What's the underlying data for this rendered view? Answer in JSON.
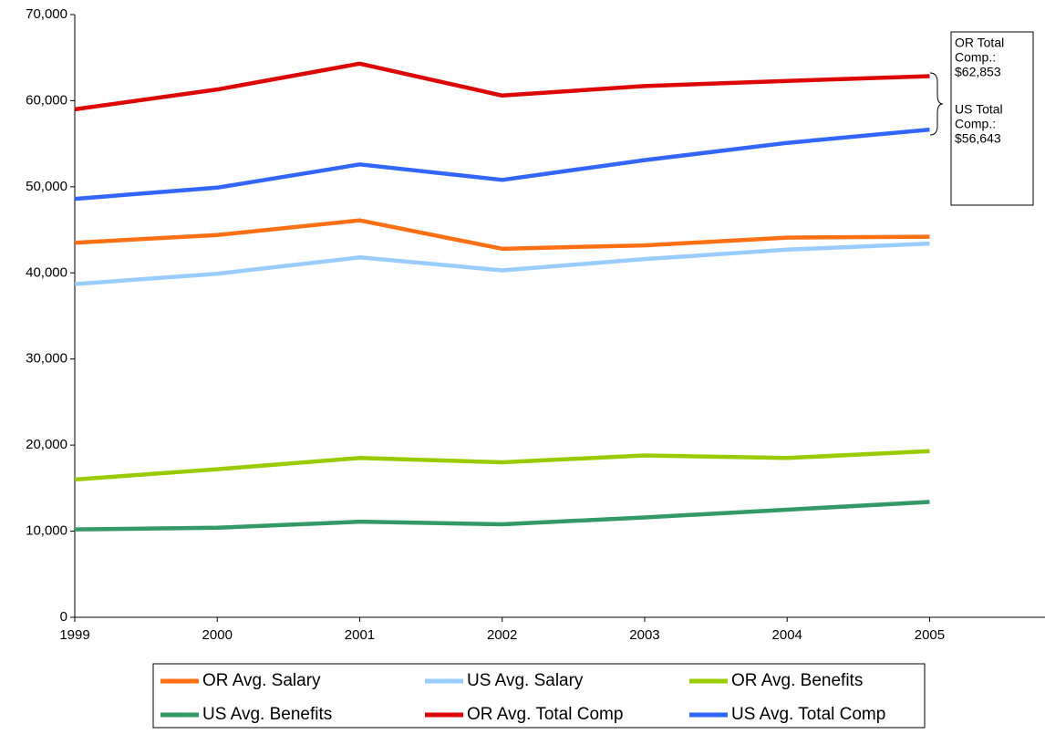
{
  "chart_data": {
    "type": "line",
    "x": [
      1999,
      2000,
      2001,
      2002,
      2003,
      2004,
      2005
    ],
    "xlim": [
      1999,
      2005.81
    ],
    "xticks": [
      1999,
      2000,
      2001,
      2002,
      2003,
      2004,
      2005
    ],
    "ylim": [
      0,
      70000
    ],
    "yticks": [
      0,
      {
        "value": 10000,
        "label": "10,000"
      },
      {
        "value": 20000,
        "label": "20,000"
      },
      {
        "value": 30000,
        "label": "30,000"
      },
      {
        "value": 40000,
        "label": "40,000"
      },
      {
        "value": 50000,
        "label": "50,000"
      },
      {
        "value": 60000,
        "label": "60,000"
      },
      {
        "value": 70000,
        "label": "70,000"
      }
    ],
    "grid": false,
    "series": [
      {
        "name": "OR Avg. Salary",
        "color": "#ff7014",
        "values": [
          43500,
          44400,
          46100,
          42800,
          43200,
          44100,
          44200
        ]
      },
      {
        "name": "US Avg. Salary",
        "color": "#99ccff",
        "values": [
          38700,
          39900,
          41800,
          40300,
          41600,
          42700,
          43400
        ]
      },
      {
        "name": "OR Avg. Benefits",
        "color": "#99cc00",
        "values": [
          16000,
          17200,
          18500,
          18000,
          18800,
          18500,
          19300
        ]
      },
      {
        "name": "US Avg. Benefits",
        "color": "#339966",
        "values": [
          10200,
          10400,
          11100,
          10800,
          11600,
          12500,
          13400
        ]
      },
      {
        "name": "OR Avg. Total Comp",
        "color": "#dd0806",
        "values": [
          59000,
          61300,
          64300,
          60600,
          61700,
          62300,
          62853
        ]
      },
      {
        "name": "US Avg. Total Comp",
        "color": "#3366ff",
        "values": [
          48600,
          49900,
          52600,
          50800,
          53100,
          55100,
          56643
        ]
      }
    ],
    "annotations": [
      {
        "lines": [
          "OR Total",
          "Comp.:",
          "$62,853"
        ]
      },
      {
        "lines": [
          "US Total",
          "Comp.:",
          "$56,643"
        ]
      }
    ]
  }
}
